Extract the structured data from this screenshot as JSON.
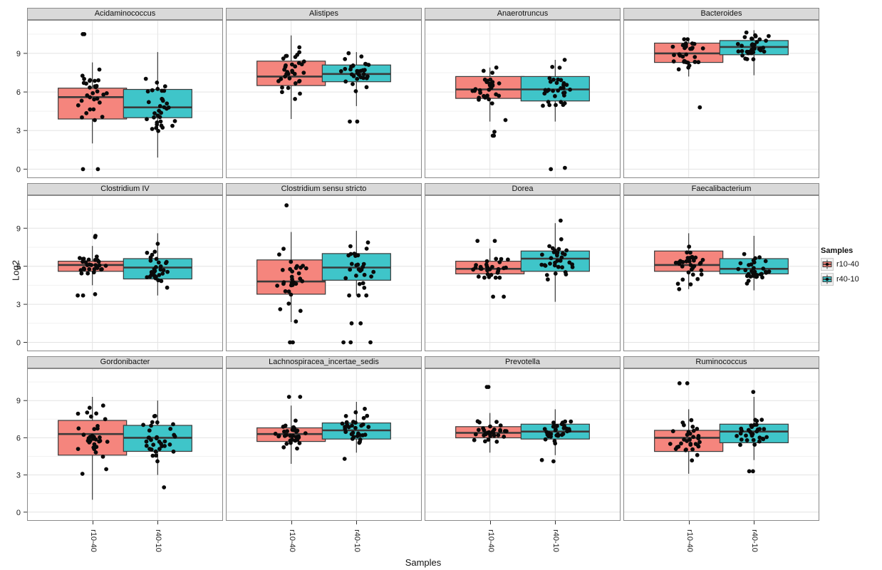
{
  "figure": {
    "y_axis_title": "Log2",
    "x_axis_title": "Samples",
    "legend": {
      "title": "Samples",
      "entries": [
        {
          "label": "r10-40",
          "color": "#F5857D"
        },
        {
          "label": "r40-10",
          "color": "#3FC5C9"
        }
      ]
    }
  },
  "chart_data": {
    "type": "boxplot",
    "faceted": true,
    "facet_layout": {
      "rows": 3,
      "cols": 4
    },
    "categories": [
      "r10-40",
      "r40-10"
    ],
    "xlabel": "Samples",
    "ylabel": "Log2",
    "yticks": [
      0,
      3,
      6,
      9
    ],
    "ylim": [
      -0.7,
      11.6
    ],
    "grid": true,
    "legend_position": "right",
    "legend_title": "Samples",
    "colors": {
      "r10-40": "#F5857D",
      "r40-10": "#3FC5C9"
    },
    "point_color": "#0a0a0a",
    "facets": [
      {
        "title": "Acidaminococcus",
        "boxes": [
          {
            "category": "r10-40",
            "whisker_low": 2.0,
            "q1": 3.9,
            "median": 5.6,
            "q3": 6.3,
            "whisker_high": 8.3,
            "outliers": [
              10.5,
              10.5,
              0.0,
              0.0
            ],
            "n_points": 34
          },
          {
            "category": "r40-10",
            "whisker_low": 0.9,
            "q1": 4.0,
            "median": 4.8,
            "q3": 6.2,
            "whisker_high": 9.1,
            "outliers": [],
            "n_points": 34
          }
        ]
      },
      {
        "title": "Alistipes",
        "boxes": [
          {
            "category": "r10-40",
            "whisker_low": 3.9,
            "q1": 6.5,
            "median": 7.2,
            "q3": 8.4,
            "whisker_high": 10.4,
            "outliers": [],
            "n_points": 34
          },
          {
            "category": "r40-10",
            "whisker_low": 4.9,
            "q1": 6.8,
            "median": 7.4,
            "q3": 8.1,
            "whisker_high": 9.1,
            "outliers": [
              3.7,
              3.7
            ],
            "n_points": 34
          }
        ]
      },
      {
        "title": "Anaerotruncus",
        "boxes": [
          {
            "category": "r10-40",
            "whisker_low": 3.7,
            "q1": 5.5,
            "median": 6.2,
            "q3": 7.2,
            "whisker_high": 7.9,
            "outliers": [
              2.9,
              2.6,
              2.6
            ],
            "n_points": 34
          },
          {
            "category": "r40-10",
            "whisker_low": 3.7,
            "q1": 5.3,
            "median": 6.2,
            "q3": 7.2,
            "whisker_high": 8.5,
            "outliers": [
              0.1,
              0.0
            ],
            "n_points": 34
          }
        ]
      },
      {
        "title": "Bacteroides",
        "boxes": [
          {
            "category": "r10-40",
            "whisker_low": 7.2,
            "q1": 8.3,
            "median": 9.0,
            "q3": 9.8,
            "whisker_high": 10.1,
            "outliers": [
              4.8
            ],
            "n_points": 34
          },
          {
            "category": "r40-10",
            "whisker_low": 7.3,
            "q1": 8.9,
            "median": 9.5,
            "q3": 10.0,
            "whisker_high": 10.8,
            "outliers": [],
            "n_points": 34
          }
        ]
      },
      {
        "title": "Clostridium IV",
        "boxes": [
          {
            "category": "r10-40",
            "whisker_low": 4.5,
            "q1": 5.6,
            "median": 6.1,
            "q3": 6.4,
            "whisker_high": 7.6,
            "outliers": [
              8.3,
              8.4,
              3.8,
              3.7,
              3.7
            ],
            "n_points": 34
          },
          {
            "category": "r40-10",
            "whisker_low": 3.7,
            "q1": 5.0,
            "median": 5.9,
            "q3": 6.6,
            "whisker_high": 8.6,
            "outliers": [],
            "n_points": 34
          }
        ]
      },
      {
        "title": "Clostridium sensu stricto",
        "boxes": [
          {
            "category": "r10-40",
            "whisker_low": 1.6,
            "q1": 3.8,
            "median": 4.8,
            "q3": 6.5,
            "whisker_high": 8.7,
            "outliers": [
              10.8,
              0.0,
              0.0
            ],
            "n_points": 34
          },
          {
            "category": "r40-10",
            "whisker_low": 3.7,
            "q1": 4.9,
            "median": 5.9,
            "q3": 7.0,
            "whisker_high": 8.8,
            "outliers": [
              1.5,
              1.5,
              0.0,
              0.0,
              0.0
            ],
            "n_points": 34
          }
        ]
      },
      {
        "title": "Dorea",
        "boxes": [
          {
            "category": "r10-40",
            "whisker_low": 5.1,
            "q1": 5.4,
            "median": 5.8,
            "q3": 6.4,
            "whisker_high": 7.4,
            "outliers": [
              8.0,
              8.0,
              3.6,
              3.6
            ],
            "n_points": 34
          },
          {
            "category": "r40-10",
            "whisker_low": 3.2,
            "q1": 5.6,
            "median": 6.6,
            "q3": 7.2,
            "whisker_high": 9.4,
            "outliers": [
              9.6
            ],
            "n_points": 34
          }
        ]
      },
      {
        "title": "Faecalibacterium",
        "boxes": [
          {
            "category": "r10-40",
            "whisker_low": 4.2,
            "q1": 5.6,
            "median": 6.1,
            "q3": 7.2,
            "whisker_high": 8.6,
            "outliers": [],
            "n_points": 34
          },
          {
            "category": "r40-10",
            "whisker_low": 4.1,
            "q1": 5.4,
            "median": 5.8,
            "q3": 6.6,
            "whisker_high": 8.4,
            "outliers": [],
            "n_points": 34
          }
        ]
      },
      {
        "title": "Gordonibacter",
        "boxes": [
          {
            "category": "r10-40",
            "whisker_low": 1.0,
            "q1": 4.6,
            "median": 6.3,
            "q3": 7.4,
            "whisker_high": 9.3,
            "outliers": [],
            "n_points": 34
          },
          {
            "category": "r40-10",
            "whisker_low": 3.0,
            "q1": 4.9,
            "median": 6.0,
            "q3": 7.0,
            "whisker_high": 9.0,
            "outliers": [
              2.0
            ],
            "n_points": 34
          }
        ]
      },
      {
        "title": "Lachnospiracea_incertae_sedis",
        "boxes": [
          {
            "category": "r10-40",
            "whisker_low": 3.9,
            "q1": 5.7,
            "median": 6.3,
            "q3": 6.8,
            "whisker_high": 8.6,
            "outliers": [
              9.3,
              9.3
            ],
            "n_points": 34
          },
          {
            "category": "r40-10",
            "whisker_low": 4.8,
            "q1": 5.9,
            "median": 6.6,
            "q3": 7.2,
            "whisker_high": 8.9,
            "outliers": [
              4.3
            ],
            "n_points": 34
          }
        ]
      },
      {
        "title": "Prevotella",
        "boxes": [
          {
            "category": "r10-40",
            "whisker_low": 4.8,
            "q1": 6.0,
            "median": 6.4,
            "q3": 6.9,
            "whisker_high": 8.0,
            "outliers": [
              10.1,
              10.1
            ],
            "n_points": 34
          },
          {
            "category": "r40-10",
            "whisker_low": 4.6,
            "q1": 5.9,
            "median": 6.5,
            "q3": 7.1,
            "whisker_high": 8.3,
            "outliers": [
              4.2,
              4.1
            ],
            "n_points": 34
          }
        ]
      },
      {
        "title": "Ruminococcus",
        "boxes": [
          {
            "category": "r10-40",
            "whisker_low": 3.1,
            "q1": 4.9,
            "median": 6.0,
            "q3": 6.6,
            "whisker_high": 8.3,
            "outliers": [
              10.4,
              10.4
            ],
            "n_points": 34
          },
          {
            "category": "r40-10",
            "whisker_low": 4.2,
            "q1": 5.6,
            "median": 6.5,
            "q3": 7.1,
            "whisker_high": 9.3,
            "outliers": [
              9.7,
              3.3,
              3.3
            ],
            "n_points": 34
          }
        ]
      }
    ]
  }
}
